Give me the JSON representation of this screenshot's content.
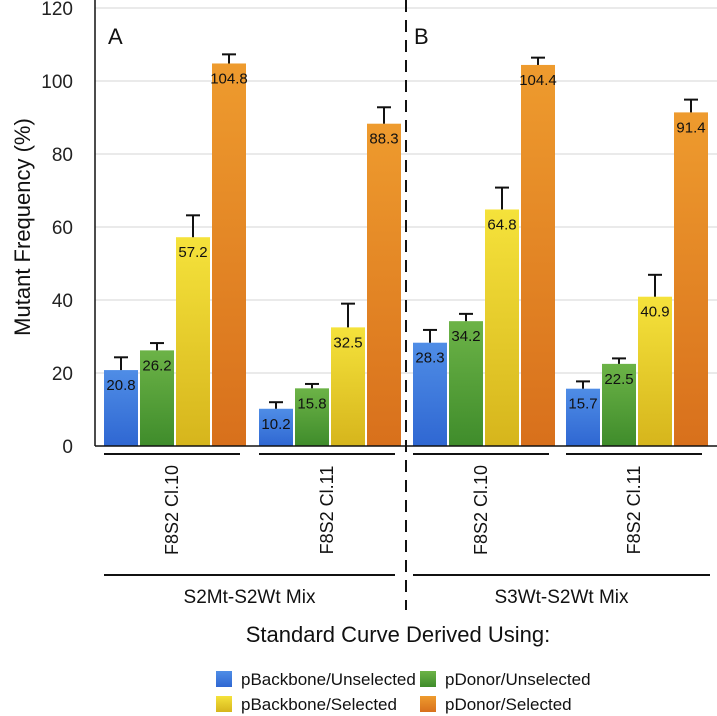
{
  "chart_data": {
    "type": "bar",
    "ylabel": "Mutant Frequency (%)",
    "xlabel": "Standard Curve Derived Using:",
    "ylim": [
      0,
      120
    ],
    "yticks": [
      0,
      20,
      40,
      60,
      80,
      100,
      120
    ],
    "grid": true,
    "panels": [
      {
        "letter": "A",
        "group_label": "S2Mt-S2Wt Mix",
        "clusters": [
          {
            "label": "F8S2 Cl.10",
            "values": [
              20.8,
              26.2,
              57.2,
              104.8
            ],
            "errors": [
              3.5,
              2.0,
              6.0,
              2.5
            ]
          },
          {
            "label": "F8S2 Cl.11",
            "values": [
              10.2,
              15.8,
              32.5,
              88.3
            ],
            "errors": [
              1.8,
              1.2,
              6.5,
              4.5
            ]
          }
        ]
      },
      {
        "letter": "B",
        "group_label": "S3Wt-S2Wt Mix",
        "clusters": [
          {
            "label": "F8S2 Cl.10",
            "values": [
              28.3,
              34.2,
              64.8,
              104.4
            ],
            "errors": [
              3.5,
              2.0,
              6.0,
              2.0
            ]
          },
          {
            "label": "F8S2 Cl.11",
            "values": [
              15.7,
              22.5,
              40.9,
              91.4
            ],
            "errors": [
              2.0,
              1.5,
              6.0,
              3.5
            ]
          }
        ]
      }
    ],
    "value_labels": {
      "A": {
        "c0": [
          "20.8",
          "26.2",
          "57.2",
          "104.8"
        ],
        "c1": [
          "10.2",
          "15.8",
          "32.5",
          "88.3"
        ]
      },
      "B": {
        "c0": [
          "28.3",
          "34.2",
          "64.8",
          "104.4"
        ],
        "c1": [
          "15.7",
          "22.5",
          "40.9",
          "91.4"
        ]
      }
    },
    "series": [
      {
        "name": "pBackbone/Unselected",
        "color_top": "#4f8de6",
        "color_bottom": "#2f67d2"
      },
      {
        "name": "pDonor/Unselected",
        "color_top": "#6cb347",
        "color_bottom": "#3f8c2b"
      },
      {
        "name": "pBackbone/Selected",
        "color_top": "#f5e23b",
        "color_bottom": "#d6b51c"
      },
      {
        "name": "pDonor/Selected",
        "color_top": "#ee9b2e",
        "color_bottom": "#d8701c"
      }
    ]
  }
}
